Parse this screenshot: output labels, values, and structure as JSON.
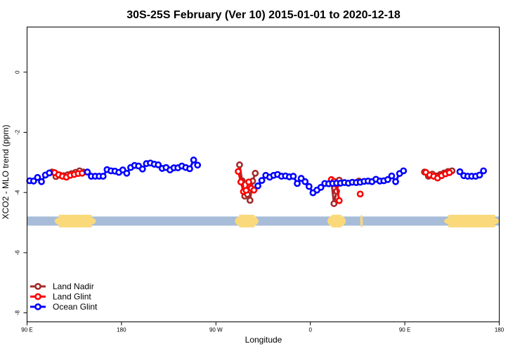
{
  "chart_data": {
    "type": "line",
    "title": "30S-25S February (Ver 10)   2015-01-01 to 2020-12-18",
    "xlabel": "Longitude",
    "ylabel": "XCO2 - MLO trend (ppm)",
    "xlim": [
      -90,
      270
    ],
    "ylim": [
      -8.3,
      1.5
    ],
    "xticks": [
      {
        "value": -90,
        "label": "90 E"
      },
      {
        "value": -18,
        "label": "180"
      },
      {
        "value": 54,
        "label": "90 W"
      },
      {
        "value": 126,
        "label": "0"
      },
      {
        "value": 198,
        "label": "90 E"
      },
      {
        "value": 270,
        "label": "180"
      }
    ],
    "yticks": [
      {
        "value": 0,
        "label": "0"
      },
      {
        "value": -2,
        "label": "-2"
      },
      {
        "value": -4,
        "label": "-4"
      },
      {
        "value": -6,
        "label": "-6"
      },
      {
        "value": -8,
        "label": "-8"
      }
    ],
    "grid": false,
    "legend_position": "bottom-left",
    "band": {
      "y": -4.95,
      "ocean_color": "#a7bcd8",
      "land_color": "#fad97a",
      "land_ranges": [
        [
          -69,
          -37.5
        ],
        [
          68.5,
          86.5
        ],
        [
          139,
          153
        ],
        [
          164,
          166
        ],
        [
          228,
          275
        ]
      ]
    },
    "series": [
      {
        "name": "Land Nadir",
        "color": "#a52a2a",
        "segments": [
          [
            [
              -71,
              -3.32
            ],
            [
              -68,
              -3.47
            ],
            [
              -65,
              -3.42
            ],
            [
              -62,
              -3.44
            ],
            [
              -59,
              -3.41
            ],
            [
              -56,
              -3.37
            ],
            [
              -53,
              -3.33
            ],
            [
              -50,
              -3.28
            ],
            [
              -47,
              -3.32
            ]
          ],
          [
            [
              72,
              -3.08
            ],
            [
              74,
              -3.61
            ],
            [
              76,
              -4.12
            ],
            [
              78,
              -4.06
            ],
            [
              80,
              -4.26
            ],
            [
              82,
              -3.62
            ],
            [
              84,
              -3.36
            ]
          ],
          [
            [
              142,
              -3.62
            ],
            [
              144,
              -4.37
            ],
            [
              146,
              -3.96
            ],
            [
              148,
              -3.59
            ]
          ],
          [
            [
              163,
              -3.62
            ]
          ],
          [
            [
              213,
              -3.32
            ],
            [
              216,
              -3.46
            ],
            [
              219,
              -3.39
            ],
            [
              222,
              -3.45
            ],
            [
              225,
              -3.4
            ],
            [
              228,
              -3.35
            ],
            [
              231,
              -3.3
            ],
            [
              234,
              -3.28
            ]
          ]
        ]
      },
      {
        "name": "Land Glint",
        "color": "#ff0000",
        "segments": [
          [
            [
              -69,
              -3.34
            ],
            [
              -66,
              -3.41
            ],
            [
              -63,
              -3.46
            ],
            [
              -60,
              -3.49
            ],
            [
              -57,
              -3.43
            ],
            [
              -54,
              -3.4
            ],
            [
              -51,
              -3.37
            ],
            [
              -48,
              -3.36
            ]
          ],
          [
            [
              71,
              -3.3
            ],
            [
              73,
              -3.65
            ],
            [
              75,
              -3.97
            ],
            [
              77,
              -3.93
            ],
            [
              79,
              -3.65
            ],
            [
              81,
              -3.86
            ],
            [
              83,
              -3.92
            ]
          ],
          [
            [
              142,
              -3.57
            ],
            [
              144,
              -3.63
            ],
            [
              146,
              -3.74
            ],
            [
              148,
              -4.27
            ]
          ],
          [
            [
              164,
              -4.05
            ]
          ],
          [
            [
              214,
              -3.33
            ],
            [
              217,
              -3.42
            ],
            [
              220,
              -3.46
            ],
            [
              223,
              -3.52
            ],
            [
              226,
              -3.44
            ],
            [
              229,
              -3.38
            ],
            [
              232,
              -3.34
            ]
          ]
        ]
      },
      {
        "name": "Ocean Glint",
        "color": "#0000ff",
        "segments": [
          [
            [
              -88,
              -3.61
            ],
            [
              -85,
              -3.62
            ],
            [
              -82,
              -3.5
            ],
            [
              -79,
              -3.64
            ],
            [
              -76,
              -3.42
            ],
            [
              -73,
              -3.35
            ]
          ],
          [
            [
              -44,
              -3.32
            ],
            [
              -41,
              -3.46
            ],
            [
              -38,
              -3.46
            ],
            [
              -35,
              -3.46
            ],
            [
              -32,
              -3.46
            ],
            [
              -29,
              -3.24
            ],
            [
              -26,
              -3.28
            ],
            [
              -23,
              -3.29
            ],
            [
              -20,
              -3.33
            ],
            [
              -17,
              -3.25
            ],
            [
              -14,
              -3.36
            ],
            [
              -11,
              -3.17
            ],
            [
              -8,
              -3.1
            ],
            [
              -5,
              -3.12
            ],
            [
              -2,
              -3.22
            ],
            [
              1,
              -3.04
            ],
            [
              4,
              -3.02
            ],
            [
              7,
              -3.06
            ],
            [
              10,
              -3.08
            ],
            [
              13,
              -3.2
            ],
            [
              16,
              -3.17
            ],
            [
              19,
              -3.25
            ],
            [
              22,
              -3.18
            ],
            [
              25,
              -3.18
            ],
            [
              28,
              -3.12
            ],
            [
              31,
              -3.17
            ],
            [
              34,
              -3.21
            ],
            [
              37,
              -2.92
            ],
            [
              40,
              -3.09
            ]
          ],
          [
            [
              86,
              -3.78
            ],
            [
              89,
              -3.6
            ],
            [
              92,
              -3.43
            ],
            [
              95,
              -3.49
            ],
            [
              98,
              -3.43
            ],
            [
              101,
              -3.4
            ],
            [
              104,
              -3.46
            ],
            [
              107,
              -3.45
            ],
            [
              110,
              -3.48
            ],
            [
              113,
              -3.46
            ],
            [
              116,
              -3.7
            ],
            [
              119,
              -3.53
            ],
            [
              122,
              -3.64
            ],
            [
              125,
              -3.8
            ],
            [
              128,
              -4.01
            ],
            [
              131,
              -3.92
            ],
            [
              134,
              -3.83
            ],
            [
              137,
              -3.7
            ],
            [
              140,
              -3.71
            ],
            [
              143,
              -3.7
            ],
            [
              146,
              -3.69
            ],
            [
              149,
              -3.69
            ],
            [
              152,
              -3.67
            ],
            [
              155,
              -3.69
            ],
            [
              158,
              -3.66
            ],
            [
              161,
              -3.67
            ],
            [
              164,
              -3.66
            ],
            [
              167,
              -3.63
            ],
            [
              170,
              -3.62
            ],
            [
              173,
              -3.64
            ],
            [
              176,
              -3.56
            ],
            [
              179,
              -3.62
            ],
            [
              182,
              -3.61
            ],
            [
              185,
              -3.57
            ],
            [
              188,
              -3.45
            ],
            [
              191,
              -3.64
            ],
            [
              194,
              -3.37
            ],
            [
              197,
              -3.28
            ]
          ],
          [
            [
              240,
              -3.31
            ],
            [
              243,
              -3.44
            ],
            [
              246,
              -3.46
            ],
            [
              249,
              -3.46
            ],
            [
              252,
              -3.46
            ],
            [
              255,
              -3.42
            ],
            [
              258,
              -3.28
            ]
          ]
        ]
      }
    ]
  }
}
